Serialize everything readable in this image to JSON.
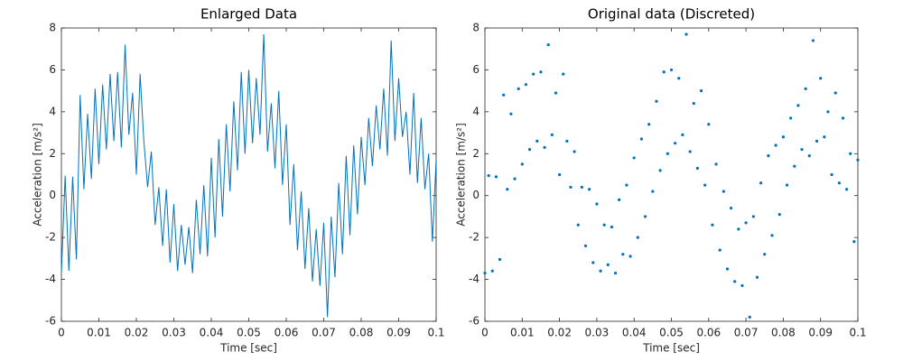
{
  "chart_data": [
    {
      "type": "line",
      "title": "Enlarged Data",
      "xlabel": "Time [sec]",
      "ylabel": "Acceleration [m/s²]",
      "color": "#0072bd",
      "xlim": [
        0,
        0.1
      ],
      "ylim": [
        -6,
        8
      ],
      "xticks": [
        0,
        0.01,
        0.02,
        0.03,
        0.04,
        0.05,
        0.06,
        0.07,
        0.08,
        0.09,
        0.1
      ],
      "yticks": [
        -6,
        -4,
        -2,
        0,
        2,
        4,
        6,
        8
      ],
      "x": [
        0,
        0.001,
        0.002,
        0.003,
        0.004,
        0.005,
        0.006,
        0.007,
        0.008,
        0.009,
        0.01,
        0.011,
        0.012,
        0.013,
        0.014,
        0.015,
        0.016,
        0.017,
        0.018,
        0.019,
        0.02,
        0.021,
        0.022,
        0.023,
        0.024,
        0.025,
        0.026,
        0.027,
        0.028,
        0.029,
        0.03,
        0.031,
        0.032,
        0.033,
        0.034,
        0.035,
        0.036,
        0.037,
        0.038,
        0.039,
        0.04,
        0.041,
        0.042,
        0.043,
        0.044,
        0.045,
        0.046,
        0.047,
        0.048,
        0.049,
        0.05,
        0.051,
        0.052,
        0.053,
        0.054,
        0.055,
        0.056,
        0.057,
        0.058,
        0.059,
        0.06,
        0.061,
        0.062,
        0.063,
        0.064,
        0.065,
        0.066,
        0.067,
        0.068,
        0.069,
        0.07,
        0.071,
        0.072,
        0.073,
        0.074,
        0.075,
        0.076,
        0.077,
        0.078,
        0.079,
        0.08,
        0.081,
        0.082,
        0.083,
        0.084,
        0.085,
        0.086,
        0.087,
        0.088,
        0.089,
        0.09,
        0.091,
        0.092,
        0.093,
        0.094,
        0.095,
        0.096,
        0.097,
        0.098,
        0.099,
        0.1
      ],
      "values": [
        -3.7,
        0.95,
        -3.6,
        0.9,
        -3.05,
        4.8,
        0.3,
        3.9,
        0.8,
        5.1,
        1.5,
        5.3,
        2.2,
        5.8,
        2.6,
        5.9,
        2.3,
        7.2,
        2.9,
        4.9,
        1.0,
        5.8,
        2.6,
        0.4,
        2.1,
        -1.4,
        0.4,
        -2.4,
        0.3,
        -3.2,
        -0.4,
        -3.6,
        -1.4,
        -3.3,
        -1.5,
        -3.7,
        -0.2,
        -2.8,
        0.5,
        -2.9,
        1.8,
        -2.0,
        2.7,
        -1.0,
        3.4,
        0.2,
        4.5,
        1.2,
        5.9,
        2.0,
        6.0,
        2.5,
        5.6,
        2.9,
        7.7,
        2.1,
        4.4,
        1.3,
        5.0,
        0.5,
        3.4,
        -1.4,
        1.5,
        -2.6,
        0.2,
        -3.5,
        -0.6,
        -4.1,
        -1.6,
        -4.3,
        -1.3,
        -5.8,
        -1.0,
        -3.9,
        0.6,
        -2.8,
        1.9,
        -1.9,
        2.4,
        -0.9,
        2.8,
        0.5,
        3.7,
        1.4,
        4.3,
        2.2,
        5.1,
        1.9,
        7.4,
        2.6,
        5.6,
        2.8,
        4.0,
        1.0,
        4.9,
        0.6,
        3.7,
        0.3,
        2.0,
        -2.2,
        1.7
      ]
    },
    {
      "type": "scatter",
      "title": "Original data (Discreted)",
      "xlabel": "Time [sec]",
      "ylabel": "Acceleration [m/s²]",
      "color": "#0072bd",
      "xlim": [
        0,
        0.1
      ],
      "ylim": [
        -6,
        8
      ],
      "xticks": [
        0,
        0.01,
        0.02,
        0.03,
        0.04,
        0.05,
        0.06,
        0.07,
        0.08,
        0.09,
        0.1
      ],
      "yticks": [
        -6,
        -4,
        -2,
        0,
        2,
        4,
        6,
        8
      ],
      "x": [
        0,
        0.001,
        0.002,
        0.003,
        0.004,
        0.005,
        0.006,
        0.007,
        0.008,
        0.009,
        0.01,
        0.011,
        0.012,
        0.013,
        0.014,
        0.015,
        0.016,
        0.017,
        0.018,
        0.019,
        0.02,
        0.021,
        0.022,
        0.023,
        0.024,
        0.025,
        0.026,
        0.027,
        0.028,
        0.029,
        0.03,
        0.031,
        0.032,
        0.033,
        0.034,
        0.035,
        0.036,
        0.037,
        0.038,
        0.039,
        0.04,
        0.041,
        0.042,
        0.043,
        0.044,
        0.045,
        0.046,
        0.047,
        0.048,
        0.049,
        0.05,
        0.051,
        0.052,
        0.053,
        0.054,
        0.055,
        0.056,
        0.057,
        0.058,
        0.059,
        0.06,
        0.061,
        0.062,
        0.063,
        0.064,
        0.065,
        0.066,
        0.067,
        0.068,
        0.069,
        0.07,
        0.071,
        0.072,
        0.073,
        0.074,
        0.075,
        0.076,
        0.077,
        0.078,
        0.079,
        0.08,
        0.081,
        0.082,
        0.083,
        0.084,
        0.085,
        0.086,
        0.087,
        0.088,
        0.089,
        0.09,
        0.091,
        0.092,
        0.093,
        0.094,
        0.095,
        0.096,
        0.097,
        0.098,
        0.099,
        0.1
      ],
      "values": [
        -3.7,
        0.95,
        -3.6,
        0.9,
        -3.05,
        4.8,
        0.3,
        3.9,
        0.8,
        5.1,
        1.5,
        5.3,
        2.2,
        5.8,
        2.6,
        5.9,
        2.3,
        7.2,
        2.9,
        4.9,
        1.0,
        5.8,
        2.6,
        0.4,
        2.1,
        -1.4,
        0.4,
        -2.4,
        0.3,
        -3.2,
        -0.4,
        -3.6,
        -1.4,
        -3.3,
        -1.5,
        -3.7,
        -0.2,
        -2.8,
        0.5,
        -2.9,
        1.8,
        -2.0,
        2.7,
        -1.0,
        3.4,
        0.2,
        4.5,
        1.2,
        5.9,
        2.0,
        6.0,
        2.5,
        5.6,
        2.9,
        7.7,
        2.1,
        4.4,
        1.3,
        5.0,
        0.5,
        3.4,
        -1.4,
        1.5,
        -2.6,
        0.2,
        -3.5,
        -0.6,
        -4.1,
        -1.6,
        -4.3,
        -1.3,
        -5.8,
        -1.0,
        -3.9,
        0.6,
        -2.8,
        1.9,
        -1.9,
        2.4,
        -0.9,
        2.8,
        0.5,
        3.7,
        1.4,
        4.3,
        2.2,
        5.1,
        1.9,
        7.4,
        2.6,
        5.6,
        2.8,
        4.0,
        1.0,
        4.9,
        0.6,
        3.7,
        0.3,
        2.0,
        -2.2,
        1.7
      ]
    }
  ]
}
